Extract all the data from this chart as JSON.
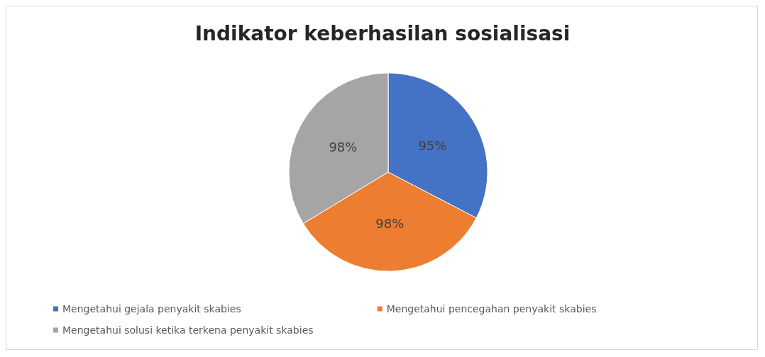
{
  "chart_data": {
    "type": "pie",
    "title": "Indikator keberhasilan sosialisasi",
    "categories": [
      "Mengetahui gejala penyakit skabies",
      "Mengetahui pencegahan penyakit skabies",
      "Mengetahui solusi ketika terkena penyakit skabies"
    ],
    "values": [
      95,
      98,
      98
    ],
    "value_labels": [
      "95%",
      "98%",
      "98%"
    ],
    "colors": [
      "#4472c4",
      "#ed7d31",
      "#a5a5a5"
    ],
    "legend": "bottom"
  }
}
